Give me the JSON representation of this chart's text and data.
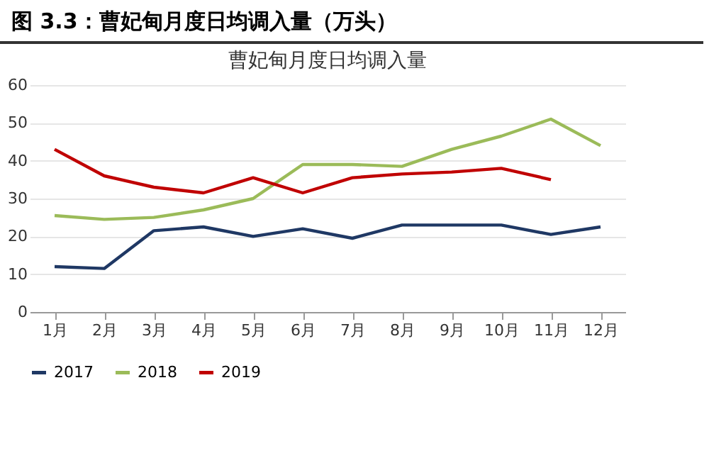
{
  "chart_data": {
    "type": "line",
    "title": "图 3.3：曹妃甸月度日均调入量（万头）",
    "subtitle": "曹妃甸月度日均调入量",
    "categories": [
      "1月",
      "2月",
      "3月",
      "4月",
      "5月",
      "6月",
      "7月",
      "8月",
      "9月",
      "10月",
      "11月",
      "12月"
    ],
    "series": [
      {
        "name": "2017",
        "color": "#1f3864",
        "values": [
          12,
          11.5,
          21.5,
          22.5,
          20,
          22,
          19.5,
          23,
          23,
          23,
          20.5,
          22.5
        ]
      },
      {
        "name": "2018",
        "color": "#9bbb59",
        "values": [
          25.5,
          24.5,
          25,
          27,
          30,
          39,
          39,
          38.5,
          43,
          46.5,
          51,
          44
        ]
      },
      {
        "name": "2019",
        "color": "#c00000",
        "values": [
          43,
          36,
          33,
          31.5,
          35.5,
          31.5,
          35.5,
          36.5,
          37,
          38,
          35,
          null
        ]
      }
    ],
    "ylim": [
      0,
      60
    ],
    "yticks": [
      0,
      10,
      20,
      30,
      40,
      50,
      60
    ],
    "grid": "y",
    "legend": "bottom",
    "marker": "none",
    "line_style": "solid"
  }
}
